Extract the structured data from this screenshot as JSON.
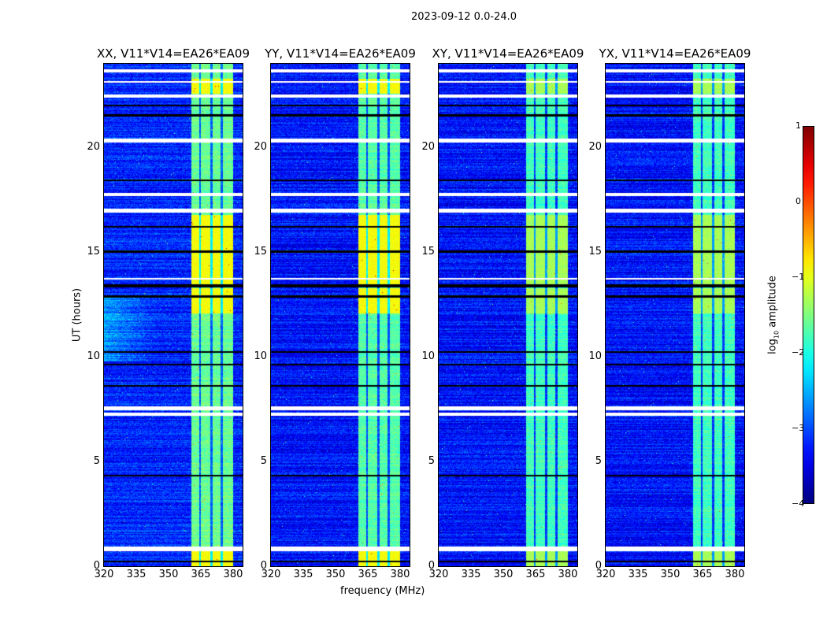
{
  "chart_data": {
    "type": "heatmap",
    "title": "2023-09-12 0.0-24.0",
    "xlabel": "frequency (MHz)",
    "ylabel": "UT (hours)",
    "xlim": [
      320,
      384.4
    ],
    "ylim": [
      0,
      24
    ],
    "xticks": [
      "320",
      "335",
      "350",
      "365",
      "380"
    ],
    "xtick_values": [
      320,
      335,
      350,
      365,
      380
    ],
    "yticks": [
      "0",
      "5",
      "10",
      "15",
      "20"
    ],
    "ytick_values": [
      0,
      5,
      10,
      15,
      20
    ],
    "colorbar": {
      "label": "log10 amplitude",
      "label_main": "log",
      "label_sub": "10",
      "label_rest": " amplitude",
      "range": [
        -4,
        1
      ],
      "ticks": [
        "1",
        "0",
        "−1",
        "−2",
        "−3",
        "−4"
      ],
      "tick_values": [
        1,
        0,
        -1,
        -2,
        -3,
        -4
      ],
      "colormap": "jet"
    },
    "panels": [
      {
        "title": "XX, V11*V14=EA26*EA09",
        "background_level": -3.2,
        "band_level": -1.6
      },
      {
        "title": "YY, V11*V14=EA26*EA09",
        "background_level": -3.3,
        "band_level": -1.7
      },
      {
        "title": "XY, V11*V14=EA26*EA09",
        "background_level": -3.3,
        "band_level": -1.8
      },
      {
        "title": "YX, V11*V14=EA26*EA09",
        "background_level": -3.3,
        "band_level": -1.8
      }
    ],
    "rfi_band_mhz": [
      360.5,
      380
    ],
    "band_gaps_mhz": [
      364.5,
      369.8,
      374.6
    ],
    "bright_band_hours": [
      [
        0,
        0.8
      ],
      [
        12.1,
        13.3
      ],
      [
        13.5,
        16.8
      ],
      [
        22.6,
        23.3
      ]
    ],
    "flagged_hours": [
      [
        0.75,
        0.95
      ],
      [
        7.2,
        7.35
      ],
      [
        7.45,
        7.65
      ],
      [
        16.9,
        17.1
      ],
      [
        17.7,
        17.85
      ],
      [
        20.25,
        20.45
      ],
      [
        22.4,
        22.55
      ],
      [
        23.1,
        23.2
      ],
      [
        23.6,
        23.75
      ],
      [
        13.7,
        13.8
      ]
    ],
    "dropout_hours": [
      [
        0.2,
        0.28
      ],
      [
        4.3,
        4.38
      ],
      [
        8.6,
        8.68
      ],
      [
        9.6,
        9.7
      ],
      [
        10.2,
        10.28
      ],
      [
        12.85,
        12.95
      ],
      [
        13.35,
        13.5
      ],
      [
        15.0,
        15.1
      ],
      [
        16.2,
        16.28
      ],
      [
        18.4,
        18.5
      ],
      [
        21.5,
        21.6
      ],
      [
        22.0,
        22.08
      ]
    ]
  }
}
